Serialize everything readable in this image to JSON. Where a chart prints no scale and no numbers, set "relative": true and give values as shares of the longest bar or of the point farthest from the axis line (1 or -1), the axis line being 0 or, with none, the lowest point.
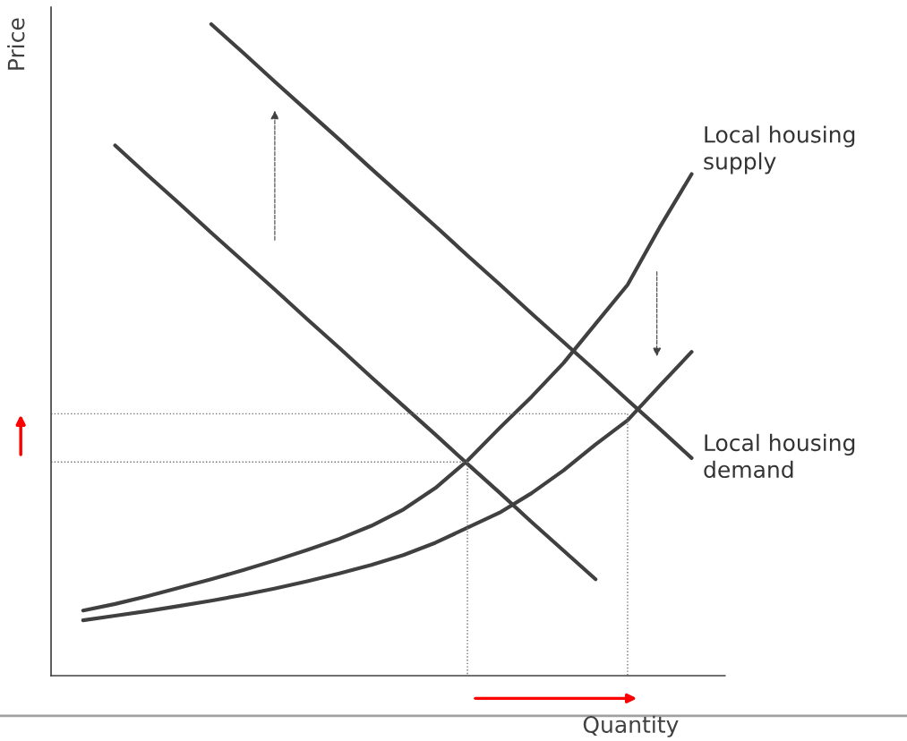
{
  "chart_data": {
    "type": "line",
    "relative": true,
    "xlabel": "Quantity",
    "ylabel": "Price",
    "categories": [
      null,
      null,
      null,
      null,
      null,
      null,
      null,
      null,
      null,
      null,
      null,
      null,
      null,
      null,
      null,
      null,
      null,
      null,
      null,
      null,
      null
    ],
    "series": [
      {
        "color": "#404040",
        "values": [
          null,
          null,
          0.814,
          0.769,
          0.725,
          0.68,
          0.636,
          0.592,
          0.547,
          0.503,
          0.458,
          0.414,
          0.37,
          0.325,
          0.281,
          0.236,
          0.192,
          0.148,
          null,
          null,
          null
        ]
      },
      {
        "name": "Local housing demand",
        "color": "#404040",
        "values": [
          null,
          null,
          null,
          null,
          null,
          1.0,
          0.956,
          0.911,
          0.867,
          0.823,
          0.778,
          0.734,
          0.69,
          0.645,
          0.601,
          0.556,
          0.512,
          0.468,
          0.423,
          0.379,
          0.334
        ]
      },
      {
        "name": "Local housing supply",
        "color": "#404040",
        "values": [
          null,
          0.1,
          0.11,
          0.122,
          0.135,
          0.148,
          0.162,
          0.177,
          0.193,
          0.21,
          0.23,
          0.255,
          0.288,
          0.33,
          0.38,
          0.428,
          0.48,
          0.54,
          0.6,
          0.688,
          0.77
        ]
      },
      {
        "color": "#404040",
        "values": [
          null,
          0.085,
          0.092,
          0.099,
          0.107,
          0.115,
          0.124,
          0.134,
          0.145,
          0.157,
          0.17,
          0.185,
          0.204,
          0.227,
          0.25,
          0.28,
          0.315,
          0.355,
          0.392,
          0.445,
          0.497
        ]
      },
      {
        "color": "#707070",
        "line_style": "dotted",
        "values": [
          0.328,
          0.328,
          0.328,
          0.328,
          0.328,
          0.328,
          0.328,
          0.328,
          0.328,
          0.328,
          0.328,
          0.328,
          0.328,
          0.328,
          null,
          null,
          null,
          null,
          null,
          null,
          null
        ]
      },
      {
        "color": "#707070",
        "line_style": "dotted",
        "values": [
          0.402,
          0.402,
          0.402,
          0.402,
          0.402,
          0.402,
          0.402,
          0.402,
          0.402,
          0.402,
          0.402,
          0.402,
          0.402,
          0.402,
          0.402,
          0.402,
          0.402,
          0.402,
          0.402,
          null,
          null
        ]
      }
    ]
  }
}
